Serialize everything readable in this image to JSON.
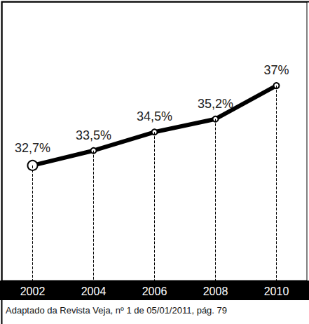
{
  "chart_data": {
    "type": "line",
    "categories": [
      "2002",
      "2004",
      "2006",
      "2008",
      "2010"
    ],
    "values": [
      32.7,
      33.5,
      34.5,
      35.2,
      37
    ],
    "value_labels": [
      "32,7%",
      "33,5%",
      "34,5%",
      "35,2%",
      "37%"
    ],
    "color": "#000000",
    "ylim": [
      26.5,
      41.5
    ],
    "grid": false,
    "data_labels": true,
    "tick_labels": "x",
    "marker": "circle",
    "line_style": "solid",
    "annotations": [
      "Adaptado da Revista Veja, nº 1 de 05/01/2011, pág. 79"
    ]
  }
}
